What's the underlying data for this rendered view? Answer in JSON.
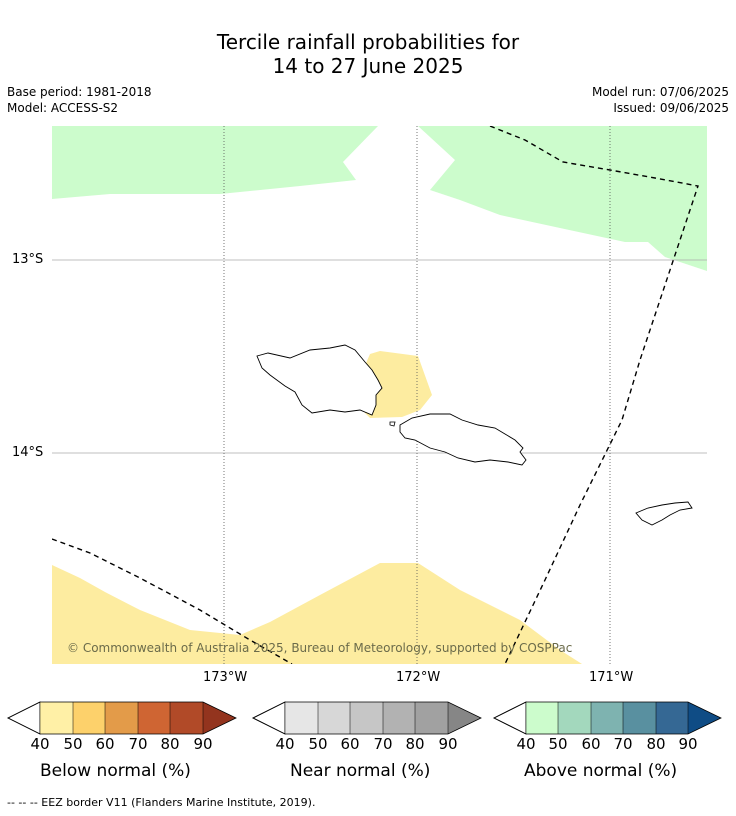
{
  "title_line1": "Tercile rainfall probabilities for",
  "title_line2": "14 to 27 June 2025",
  "base_period": "Base period: 1981-2018",
  "model": "Model: ACCESS-S2",
  "model_run": "Model run: 07/06/2025",
  "issued": "Issued: 09/06/2025",
  "lat_labels": [
    "13°S",
    "14°S"
  ],
  "lon_labels": [
    "173°W",
    "172°W",
    "171°W"
  ],
  "copyright": "© Commonwealth of Australia 2025, Bureau of Meteorology, supported by COSPPac",
  "colorbars": [
    {
      "label": "Below normal (%)",
      "colors": [
        "#fff0a6",
        "#fdd16b",
        "#e39b49",
        "#cf6533",
        "#b14a28",
        "#93341e"
      ]
    },
    {
      "label": "Near normal (%)",
      "colors": [
        "#e6e6e6",
        "#d7d7d7",
        "#c6c6c6",
        "#b2b2b2",
        "#a1a1a1",
        "#868686"
      ]
    },
    {
      "label": "Above normal (%)",
      "colors": [
        "#ccfccc",
        "#a3d8bd",
        "#7eb3b0",
        "#5990a0",
        "#356894",
        "#0f4c85"
      ]
    }
  ],
  "ticks": [
    "40",
    "50",
    "60",
    "70",
    "80",
    "90"
  ],
  "footer": "--  --  -- EEZ border V11 (Flanders Marine Institute, 2019).",
  "colors": {
    "above_fill": "#ccfccc",
    "below_fill": "#fdeca0"
  }
}
